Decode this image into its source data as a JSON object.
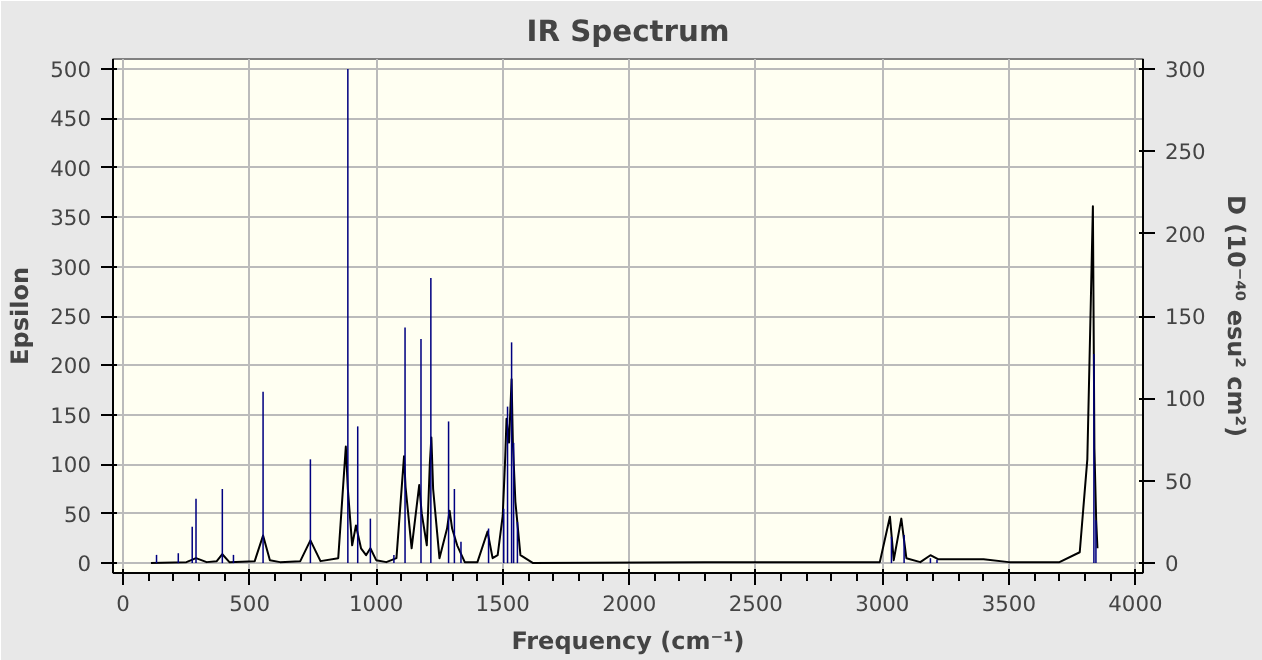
{
  "chart_data": {
    "type": "line",
    "title": "IR Spectrum",
    "xlabel": "Frequency (cm⁻¹)",
    "ylabel": "Epsilon",
    "y2label": "D (10⁻⁴⁰ esu² cm²)",
    "xlim": [
      -40,
      4030
    ],
    "xticks": [
      0,
      500,
      1000,
      1500,
      2000,
      2500,
      3000,
      3500,
      4000
    ],
    "ylim": [
      -10,
      510
    ],
    "yticks": [
      0,
      50,
      100,
      150,
      200,
      250,
      300,
      350,
      400,
      450,
      500
    ],
    "y2lim": [
      -6,
      306
    ],
    "y2ticks": [
      0,
      50,
      100,
      150,
      200,
      250,
      300
    ],
    "grid": true,
    "series": [
      {
        "color": "#000000",
        "x": [
          110,
          250,
          288,
          330,
          370,
          392,
          420,
          520,
          553,
          580,
          620,
          700,
          740,
          780,
          850,
          880,
          888,
          905,
          920,
          940,
          960,
          977,
          1000,
          1040,
          1080,
          1110,
          1116,
          1140,
          1170,
          1180,
          1200,
          1212,
          1218,
          1225,
          1250,
          1280,
          1290,
          1300,
          1320,
          1350,
          1400,
          1440,
          1460,
          1480,
          1500,
          1510,
          1515,
          1525,
          1535,
          1540,
          1550,
          1570,
          1620,
          2300,
          2990,
          3030,
          3045,
          3075,
          3095,
          3150,
          3190,
          3220,
          3400,
          3500,
          3700,
          3780,
          3810,
          3824,
          3832,
          3838,
          3845,
          3850
        ],
        "values": [
          0,
          1,
          5,
          1,
          2,
          9,
          1,
          2,
          28,
          3,
          1,
          2,
          23,
          2,
          5,
          118,
          75,
          18,
          38,
          15,
          8,
          15,
          3,
          1,
          5,
          108,
          77,
          15,
          79,
          50,
          18,
          101,
          127,
          75,
          5,
          35,
          53,
          35,
          18,
          1,
          1,
          32,
          5,
          8,
          48,
          108,
          146,
          122,
          186,
          122,
          62,
          8,
          0,
          1,
          1,
          47,
          3,
          45,
          5,
          1,
          8,
          4,
          4,
          1,
          1,
          11,
          105,
          267,
          361,
          116,
          43,
          15
        ]
      },
      {
        "type": "bar",
        "axis": "y2",
        "color": "#000080",
        "x": [
          132,
          218,
          273,
          288,
          392,
          436,
          553,
          740,
          888,
          927,
          977,
          1070,
          1114,
          1177,
          1216,
          1286,
          1309,
          1335,
          1444,
          1504,
          1519,
          1535,
          1543,
          1558,
          3036,
          3086,
          3190,
          3216,
          3836,
          3844
        ],
        "values": [
          5,
          6,
          22,
          39,
          45,
          5,
          104,
          63,
          300,
          83,
          27,
          5,
          143,
          136,
          173,
          86,
          45,
          13,
          21,
          33,
          95,
          134,
          73,
          25,
          16,
          17,
          3,
          2,
          127,
          26
        ]
      }
    ]
  }
}
